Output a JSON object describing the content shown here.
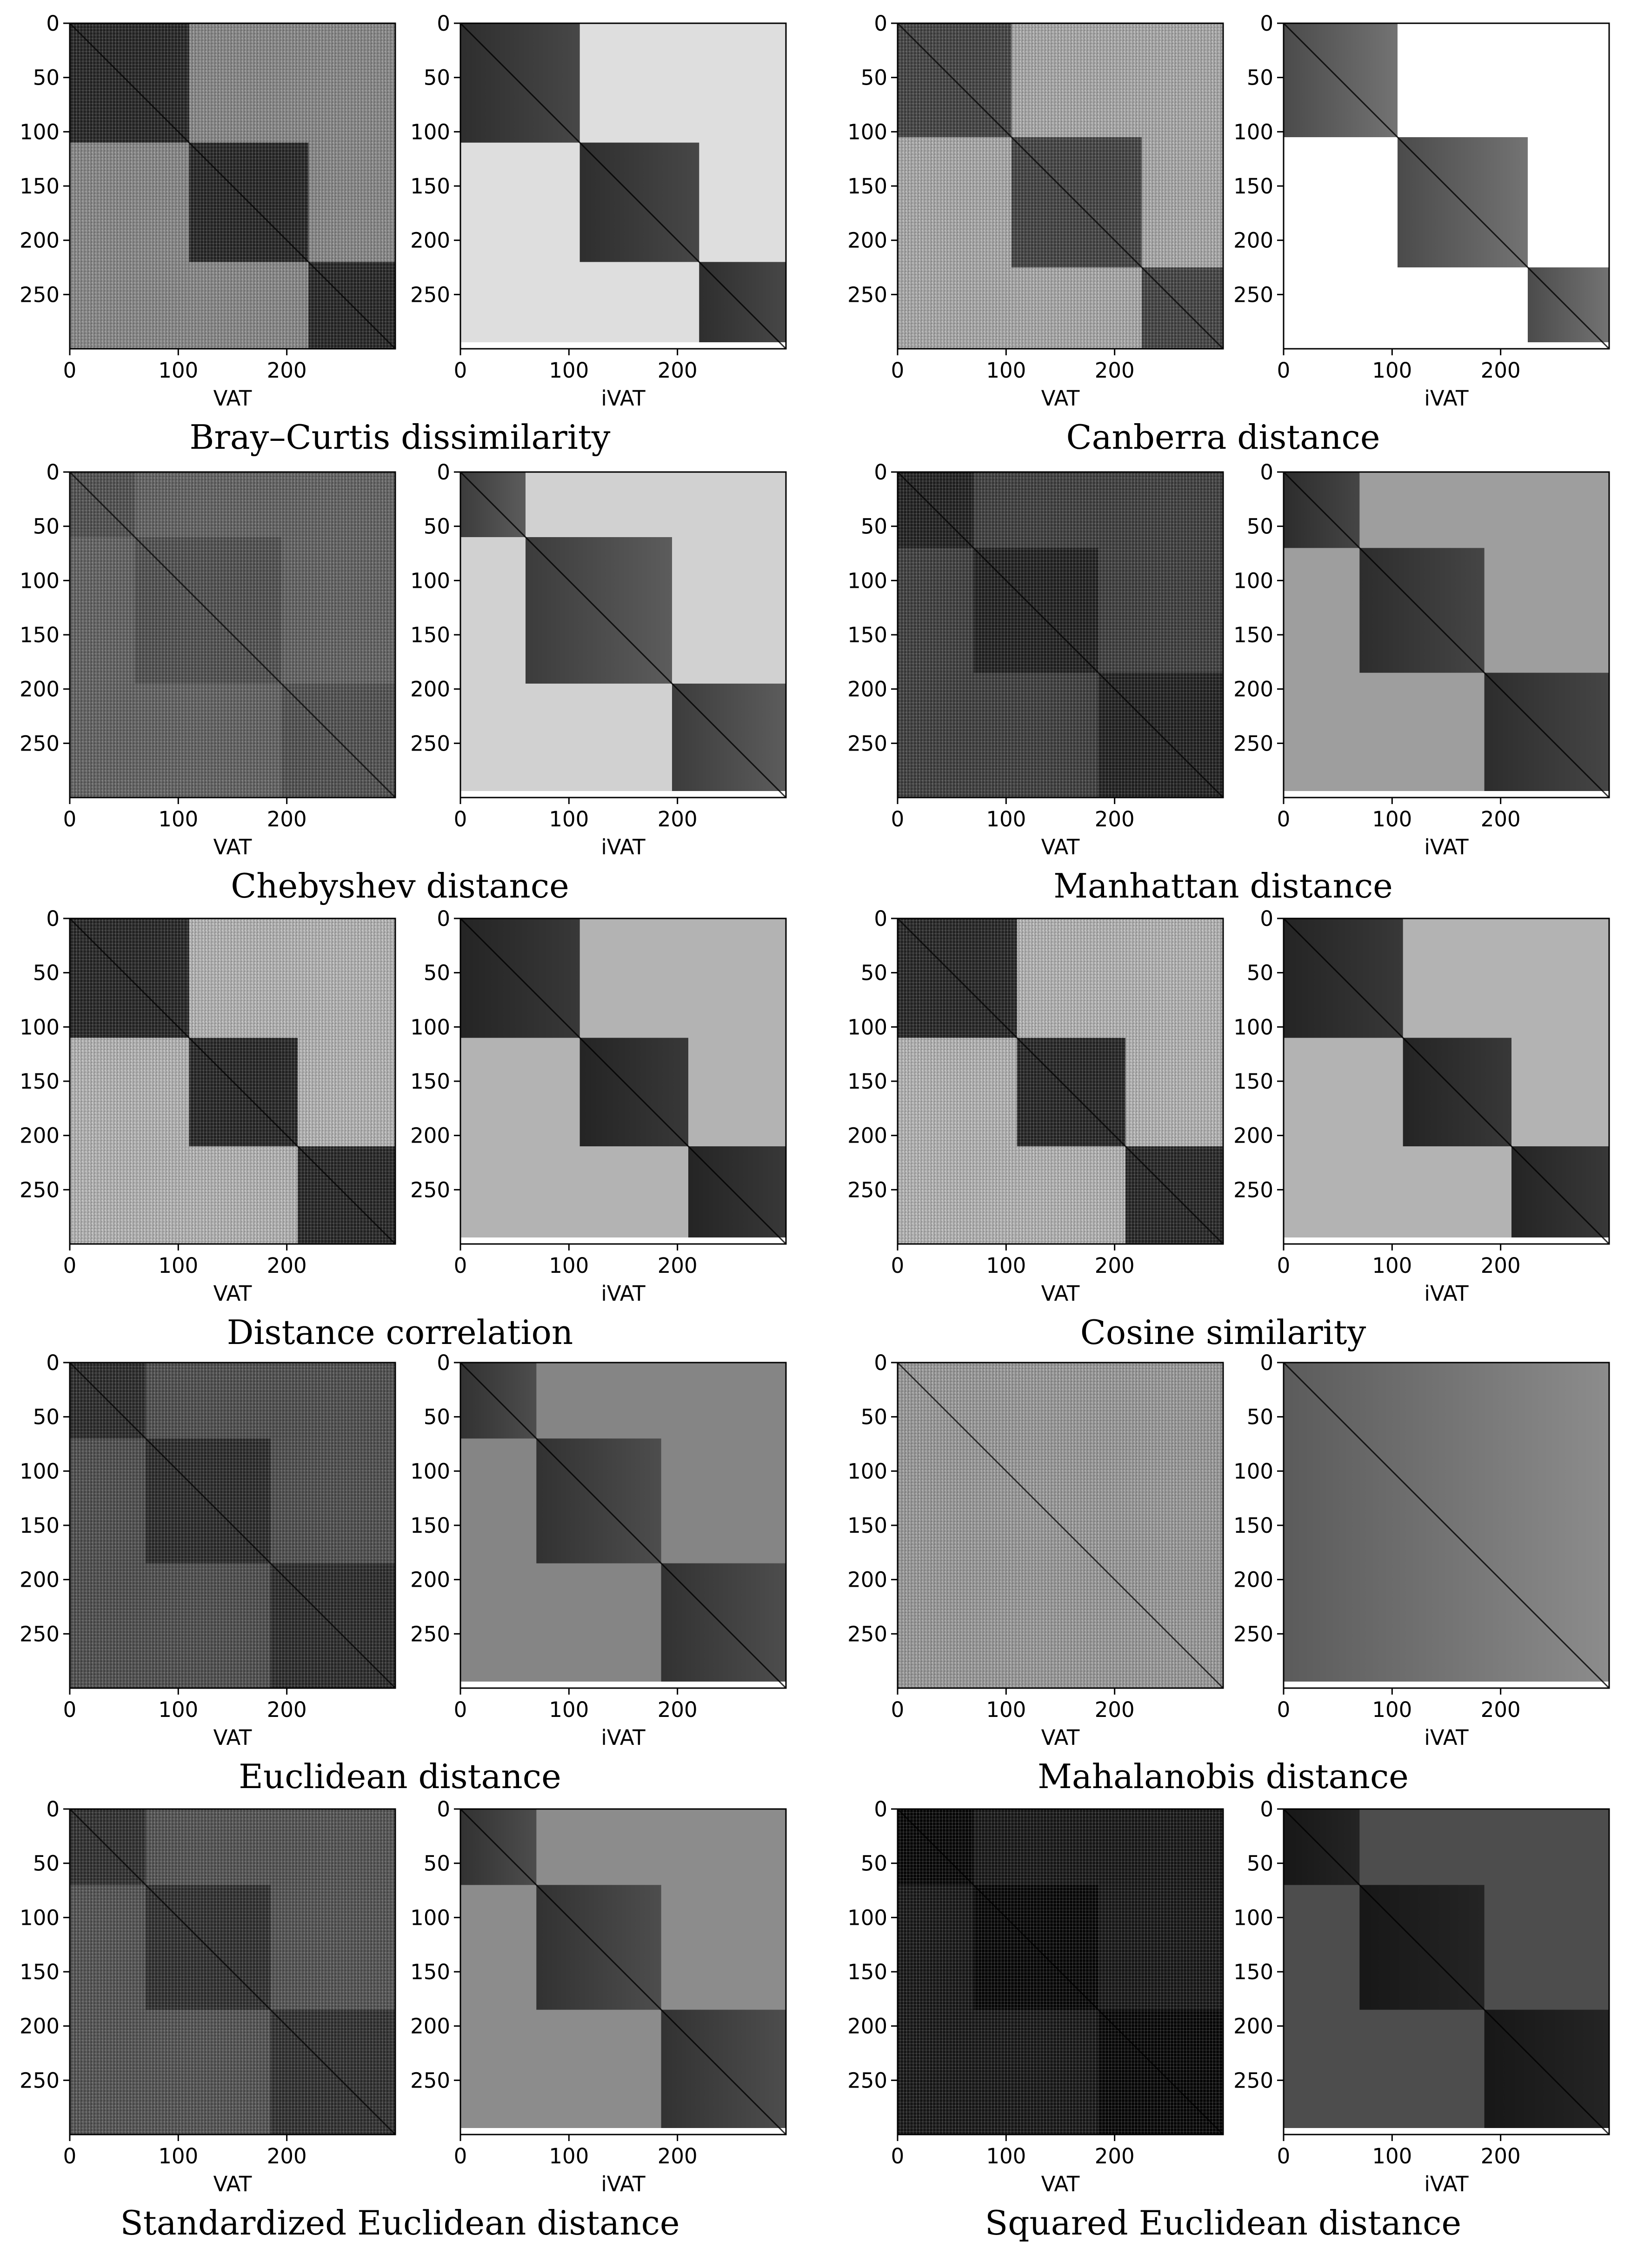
{
  "chart_data": {
    "type": "heatmap",
    "x_ticks": [
      0,
      100,
      200
    ],
    "y_ticks": [
      0,
      50,
      100,
      150,
      200,
      250
    ],
    "n": 300,
    "ylim": [
      300,
      0
    ],
    "xlim": [
      0,
      300
    ],
    "panel_labels": [
      "VAT",
      "iVAT"
    ],
    "figures": [
      {
        "caption": "Bray–Curtis dissimilarity",
        "clusters": [
          [
            0,
            110
          ],
          [
            110,
            220
          ],
          [
            220,
            300
          ]
        ],
        "vat_inner": 0.16,
        "vat_outer": 0.55,
        "ivat_inner": 0.28,
        "ivat_outer": 0.87
      },
      {
        "caption": "Canberra distance",
        "clusters": [
          [
            0,
            105
          ],
          [
            105,
            225
          ],
          [
            225,
            300
          ]
        ],
        "vat_inner": 0.28,
        "vat_outer": 0.68,
        "ivat_inner": 0.45,
        "ivat_outer": 1.0
      },
      {
        "caption": "Chebyshev distance",
        "clusters": [
          [
            0,
            60
          ],
          [
            60,
            195
          ],
          [
            195,
            300
          ]
        ],
        "vat_inner": 0.33,
        "vat_outer": 0.4,
        "ivat_inner": 0.36,
        "ivat_outer": 0.82
      },
      {
        "caption": "Manhattan distance",
        "clusters": [
          [
            0,
            70
          ],
          [
            70,
            185
          ],
          [
            185,
            300
          ]
        ],
        "vat_inner": 0.14,
        "vat_outer": 0.26,
        "ivat_inner": 0.27,
        "ivat_outer": 0.62
      },
      {
        "caption": "Distance correlation",
        "clusters": [
          [
            0,
            110
          ],
          [
            110,
            210
          ],
          [
            210,
            300
          ]
        ],
        "vat_inner": 0.16,
        "vat_outer": 0.72,
        "ivat_inner": 0.22,
        "ivat_outer": 0.7
      },
      {
        "caption": "Cosine similarity",
        "clusters": [
          [
            0,
            110
          ],
          [
            110,
            210
          ],
          [
            210,
            300
          ]
        ],
        "vat_inner": 0.16,
        "vat_outer": 0.72,
        "ivat_inner": 0.22,
        "ivat_outer": 0.7
      },
      {
        "caption": "Euclidean distance",
        "clusters": [
          [
            0,
            70
          ],
          [
            70,
            185
          ],
          [
            185,
            300
          ]
        ],
        "vat_inner": 0.18,
        "vat_outer": 0.32,
        "ivat_inner": 0.3,
        "ivat_outer": 0.52
      },
      {
        "caption": "Mahalanobis distance",
        "clusters": [
          [
            0,
            300
          ]
        ],
        "vat_inner": 0.62,
        "vat_outer": 0.62,
        "ivat_inner": 0.55,
        "ivat_outer": 0.8
      },
      {
        "caption": "Standardized Euclidean distance",
        "clusters": [
          [
            0,
            70
          ],
          [
            70,
            185
          ],
          [
            185,
            300
          ]
        ],
        "vat_inner": 0.2,
        "vat_outer": 0.34,
        "ivat_inner": 0.3,
        "ivat_outer": 0.55
      },
      {
        "caption": "Squared Euclidean distance",
        "clusters": [
          [
            0,
            70
          ],
          [
            70,
            185
          ],
          [
            185,
            300
          ]
        ],
        "vat_inner": 0.03,
        "vat_outer": 0.1,
        "ivat_inner": 0.14,
        "ivat_outer": 0.3
      }
    ]
  }
}
